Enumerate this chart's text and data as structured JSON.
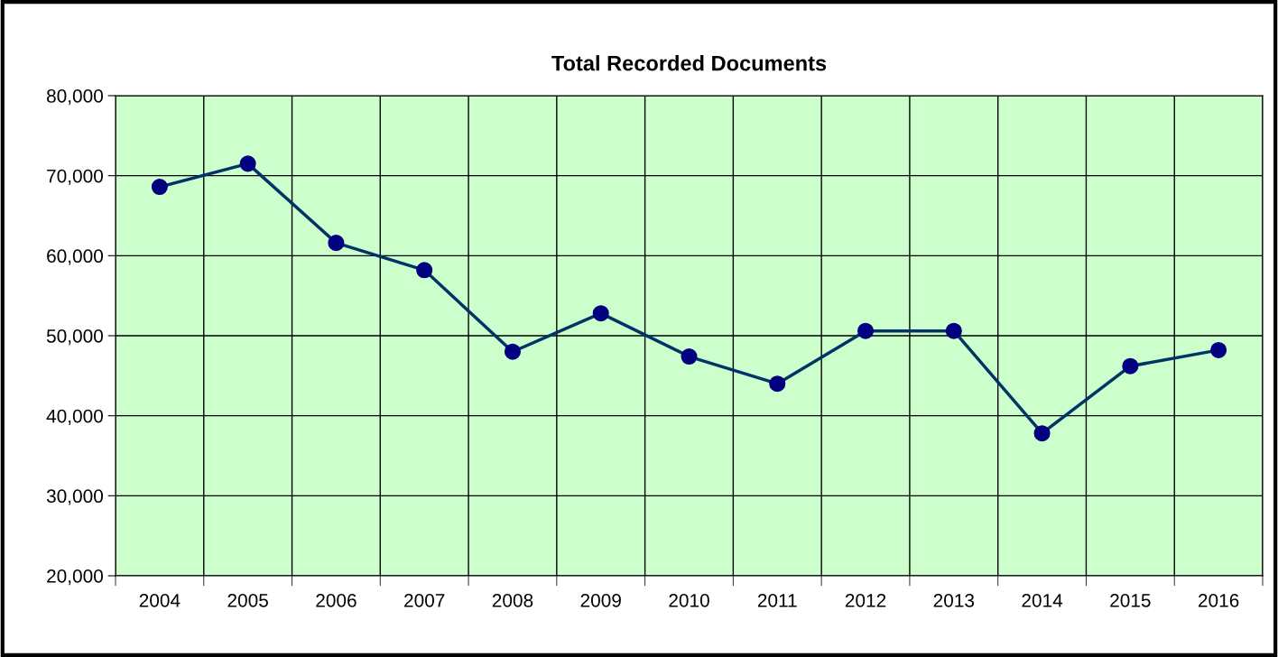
{
  "chart_data": {
    "type": "line",
    "title": "Total Recorded Documents",
    "categories": [
      "2004",
      "2005",
      "2006",
      "2007",
      "2008",
      "2009",
      "2010",
      "2011",
      "2012",
      "2013",
      "2014",
      "2015",
      "2016"
    ],
    "series": [
      {
        "color": "#003366",
        "values": [
          68600,
          71500,
          61600,
          58200,
          48000,
          52800,
          47400,
          44000,
          50600,
          50600,
          37800,
          46200,
          48200
        ]
      }
    ],
    "ylim": [
      20000,
      80000
    ],
    "yticks": [
      {
        "value": 20000,
        "label": "20,000"
      },
      {
        "value": 30000,
        "label": "30,000"
      },
      {
        "value": 40000,
        "label": "40,000"
      },
      {
        "value": 50000,
        "label": "50,000"
      },
      {
        "value": 60000,
        "label": "60,000"
      },
      {
        "value": 70000,
        "label": "70,000"
      },
      {
        "value": 80000,
        "label": "80,000"
      }
    ],
    "grid": true,
    "marker": "circle",
    "line_style": "solid"
  }
}
